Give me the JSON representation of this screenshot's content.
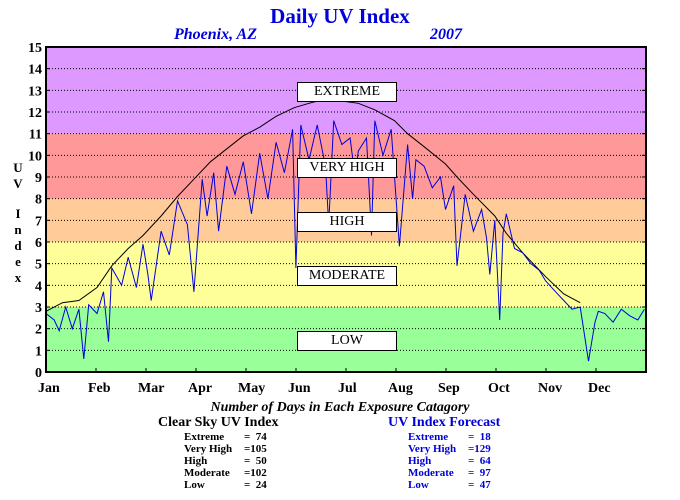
{
  "chart_data": {
    "type": "line",
    "title": "Daily UV Index",
    "subtitle_location": "Phoenix, AZ",
    "subtitle_year": "2007",
    "ylabel": "UV Index",
    "xlabel": "",
    "ylim": [
      0,
      15
    ],
    "xlim": [
      0,
      365
    ],
    "grid": true,
    "y_ticks": [
      0,
      1,
      2,
      3,
      4,
      5,
      6,
      7,
      8,
      9,
      10,
      11,
      12,
      13,
      14,
      15
    ],
    "x_tick_labels": [
      "Jan",
      "Feb",
      "Mar",
      "Apr",
      "May",
      "Jun",
      "Jul",
      "Aug",
      "Sep",
      "Oct",
      "Nov",
      "Dec"
    ],
    "bands": [
      {
        "label": "LOW",
        "from": 0,
        "to": 3,
        "color": "#99ff99"
      },
      {
        "label": "MODERATE",
        "from": 3,
        "to": 6,
        "color": "#ffff99"
      },
      {
        "label": "HIGH",
        "from": 6,
        "to": 8,
        "color": "#ffcc99"
      },
      {
        "label": "VERY HIGH",
        "from": 8,
        "to": 11,
        "color": "#ff9999"
      },
      {
        "label": "EXTREME",
        "from": 11,
        "to": 15,
        "color": "#dd99ff"
      }
    ],
    "series": [
      {
        "name": "Clear Sky UV Index",
        "color": "#000000",
        "x": [
          0,
          10,
          20,
          31,
          40,
          50,
          59,
          70,
          80,
          90,
          100,
          110,
          120,
          130,
          140,
          151,
          160,
          170,
          181,
          190,
          200,
          212,
          220,
          230,
          243,
          250,
          260,
          273,
          280,
          290,
          304,
          315,
          325
        ],
        "values": [
          2.8,
          3.2,
          3.3,
          3.9,
          4.9,
          5.7,
          6.3,
          7.2,
          8.1,
          8.9,
          9.7,
          10.3,
          10.9,
          11.3,
          11.8,
          12.2,
          12.4,
          12.6,
          12.5,
          12.4,
          12.1,
          11.6,
          11.0,
          10.4,
          9.6,
          9.0,
          8.2,
          7.2,
          6.4,
          5.5,
          4.4,
          3.6,
          3.2
        ]
      },
      {
        "name": "UV Index Forecast",
        "color": "#0000dd",
        "x": [
          0,
          5,
          8,
          12,
          16,
          20,
          23,
          26,
          31,
          35,
          38,
          40,
          46,
          50,
          55,
          59,
          62,
          64,
          70,
          75,
          80,
          86,
          90,
          95,
          98,
          102,
          105,
          110,
          115,
          120,
          125,
          130,
          135,
          140,
          145,
          150,
          152,
          155,
          160,
          165,
          170,
          172,
          175,
          180,
          185,
          188,
          190,
          195,
          198,
          200,
          205,
          210,
          215,
          220,
          223,
          225,
          230,
          235,
          240,
          243,
          248,
          250,
          255,
          260,
          265,
          268,
          270,
          273,
          276,
          278,
          280,
          285,
          290,
          295,
          300,
          304,
          310,
          315,
          320,
          325,
          330,
          334,
          336,
          340,
          345,
          350,
          355,
          360,
          364
        ],
        "values": [
          2.7,
          2.4,
          1.9,
          3.0,
          2.0,
          2.9,
          0.6,
          3.1,
          2.7,
          3.7,
          1.4,
          4.8,
          4.0,
          5.3,
          3.9,
          5.9,
          4.5,
          3.3,
          6.5,
          5.4,
          7.9,
          6.8,
          3.7,
          8.9,
          7.2,
          9.2,
          6.5,
          9.5,
          8.2,
          9.7,
          7.3,
          10.1,
          8.0,
          10.6,
          9.2,
          11.2,
          4.8,
          11.4,
          9.8,
          11.4,
          9.5,
          6.8,
          11.6,
          10.5,
          10.8,
          9.0,
          10.2,
          10.8,
          6.3,
          11.6,
          10.0,
          11.2,
          5.8,
          10.5,
          8.0,
          9.8,
          9.5,
          8.5,
          9.0,
          7.5,
          8.6,
          4.9,
          8.2,
          6.5,
          7.5,
          6.2,
          4.5,
          7.0,
          2.4,
          6.4,
          7.3,
          5.7,
          5.5,
          5.0,
          4.7,
          4.2,
          3.7,
          3.3,
          2.9,
          3.0,
          0.5,
          2.3,
          2.8,
          2.7,
          2.3,
          2.9,
          2.6,
          2.4,
          2.9
        ]
      }
    ]
  },
  "band_labels": {
    "extreme": "EXTREME",
    "very_high": "VERY HIGH",
    "high": "HIGH",
    "moderate": "MODERATE",
    "low": "LOW"
  },
  "counts": {
    "caption": "Number of Days in Each Exposure Catagory",
    "clear_sky": {
      "title": "Clear Sky UV Index",
      "rows": [
        {
          "label": "Extreme",
          "sep": "=",
          "value": "74"
        },
        {
          "label": "Very High",
          "sep": "=",
          "value": "105"
        },
        {
          "label": "High",
          "sep": "=",
          "value": "50"
        },
        {
          "label": "Moderate",
          "sep": "=",
          "value": "102"
        },
        {
          "label": "Low",
          "sep": "=",
          "value": "24"
        }
      ]
    },
    "forecast": {
      "title": "UV Index Forecast",
      "rows": [
        {
          "label": "Extreme",
          "sep": "=",
          "value": "18"
        },
        {
          "label": "Very High",
          "sep": "=",
          "value": "129"
        },
        {
          "label": "High",
          "sep": "=",
          "value": "64"
        },
        {
          "label": "Moderate",
          "sep": "=",
          "value": "97"
        },
        {
          "label": "Low",
          "sep": "=",
          "value": "47"
        }
      ]
    }
  }
}
